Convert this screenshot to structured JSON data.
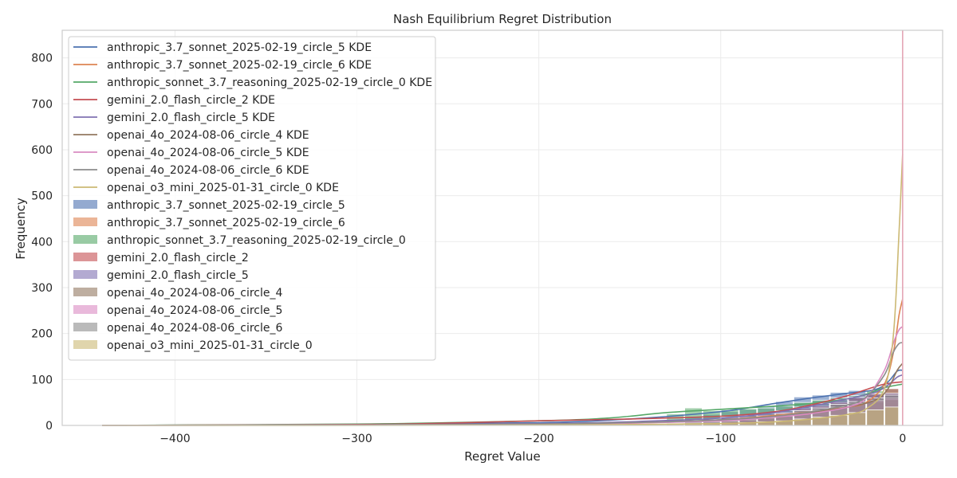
{
  "chart_data": {
    "type": "histogram",
    "title": "Nash Equilibrium Regret Distribution",
    "xlabel": "Regret Value",
    "ylabel": "Frequency",
    "xlim": [
      -462,
      22
    ],
    "ylim": [
      0,
      860
    ],
    "xticks": [
      -400,
      -300,
      -200,
      -100,
      0
    ],
    "xtick_labels": [
      "−400",
      "−300",
      "−200",
      "−100",
      "0"
    ],
    "yticks": [
      0,
      100,
      200,
      300,
      400,
      500,
      600,
      700,
      800
    ],
    "ytick_labels": [
      "0",
      "100",
      "200",
      "300",
      "400",
      "500",
      "600",
      "700",
      "800"
    ],
    "grid": true,
    "legend_position": "upper-left",
    "reference_line_x": 0,
    "reference_line_color": "#e3a7b6",
    "bin_edges": [
      -130,
      -120,
      -110,
      -100,
      -90,
      -80,
      -70,
      -60,
      -50,
      -40,
      -30,
      -20,
      -10,
      -2
    ],
    "series": [
      {
        "name": "anthropic_3.7_sonnet_2025-02-19_circle_5",
        "color": "#4c72b0",
        "counts": [
          10,
          18,
          24,
          30,
          35,
          42,
          52,
          62,
          66,
          72,
          76,
          72,
          70,
          80
        ],
        "kde": [
          [
            -440,
            0
          ],
          [
            -300,
            2
          ],
          [
            -200,
            6
          ],
          [
            -150,
            14
          ],
          [
            -100,
            30
          ],
          [
            -70,
            48
          ],
          [
            -50,
            60
          ],
          [
            -30,
            70
          ],
          [
            -15,
            78
          ],
          [
            -8,
            95
          ],
          [
            -3,
            118
          ],
          [
            0,
            120
          ]
        ]
      },
      {
        "name": "anthropic_3.7_sonnet_2025-02-19_circle_6",
        "color": "#dd8452",
        "counts": [
          2,
          4,
          6,
          8,
          12,
          16,
          20,
          26,
          30,
          36,
          40,
          45,
          50,
          685
        ],
        "kde": [
          [
            -440,
            0
          ],
          [
            -300,
            1
          ],
          [
            -200,
            3
          ],
          [
            -150,
            5
          ],
          [
            -100,
            12
          ],
          [
            -70,
            22
          ],
          [
            -50,
            30
          ],
          [
            -30,
            40
          ],
          [
            -20,
            50
          ],
          [
            -10,
            90
          ],
          [
            -5,
            160
          ],
          [
            -2,
            240
          ],
          [
            0,
            275
          ]
        ]
      },
      {
        "name": "anthropic_sonnet_3.7_reasoning_2025-02-19_circle_0",
        "color": "#55a868",
        "counts": [
          25,
          38,
          32,
          34,
          36,
          38,
          42,
          50,
          55,
          60,
          65,
          75,
          80,
          600
        ],
        "kde": [
          [
            -440,
            0
          ],
          [
            -300,
            3
          ],
          [
            -250,
            6
          ],
          [
            -200,
            10
          ],
          [
            -170,
            14
          ],
          [
            -150,
            20
          ],
          [
            -130,
            28
          ],
          [
            -100,
            35
          ],
          [
            -70,
            42
          ],
          [
            -50,
            48
          ],
          [
            -30,
            58
          ],
          [
            -20,
            68
          ],
          [
            -10,
            82
          ],
          [
            0,
            90
          ]
        ]
      },
      {
        "name": "gemini_2.0_flash_circle_2",
        "color": "#c44e52",
        "counts": [
          8,
          12,
          14,
          16,
          18,
          22,
          28,
          36,
          42,
          50,
          60,
          70,
          80,
          90
        ],
        "kde": [
          [
            -440,
            0
          ],
          [
            -300,
            2
          ],
          [
            -250,
            5
          ],
          [
            -200,
            10
          ],
          [
            -150,
            14
          ],
          [
            -100,
            20
          ],
          [
            -70,
            30
          ],
          [
            -50,
            45
          ],
          [
            -30,
            65
          ],
          [
            -20,
            78
          ],
          [
            -10,
            90
          ],
          [
            0,
            95
          ]
        ]
      },
      {
        "name": "gemini_2.0_flash_circle_5",
        "color": "#8172b3",
        "counts": [
          6,
          10,
          14,
          18,
          22,
          26,
          32,
          40,
          48,
          56,
          62,
          68,
          70,
          100
        ],
        "kde": [
          [
            -440,
            0
          ],
          [
            -300,
            1
          ],
          [
            -200,
            4
          ],
          [
            -150,
            8
          ],
          [
            -100,
            16
          ],
          [
            -70,
            28
          ],
          [
            -50,
            42
          ],
          [
            -30,
            58
          ],
          [
            -15,
            72
          ],
          [
            -8,
            88
          ],
          [
            -3,
            105
          ],
          [
            0,
            110
          ]
        ]
      },
      {
        "name": "openai_4o_2024-08-06_circle_4",
        "color": "#937860",
        "counts": [
          4,
          6,
          8,
          10,
          14,
          18,
          22,
          28,
          34,
          40,
          46,
          52,
          56,
          598
        ],
        "kde": [
          [
            -440,
            0
          ],
          [
            -300,
            1
          ],
          [
            -200,
            3
          ],
          [
            -150,
            6
          ],
          [
            -100,
            12
          ],
          [
            -70,
            20
          ],
          [
            -50,
            28
          ],
          [
            -30,
            40
          ],
          [
            -15,
            55
          ],
          [
            -8,
            80
          ],
          [
            -3,
            120
          ],
          [
            0,
            135
          ]
        ]
      },
      {
        "name": "openai_4o_2024-08-06_circle_5",
        "color": "#da8bc3",
        "counts": [
          3,
          5,
          7,
          9,
          12,
          16,
          20,
          26,
          32,
          40,
          48,
          55,
          60,
          360
        ],
        "kde": [
          [
            -440,
            0
          ],
          [
            -300,
            1
          ],
          [
            -200,
            3
          ],
          [
            -150,
            5
          ],
          [
            -100,
            10
          ],
          [
            -70,
            18
          ],
          [
            -50,
            26
          ],
          [
            -30,
            40
          ],
          [
            -20,
            60
          ],
          [
            -10,
            120
          ],
          [
            -5,
            180
          ],
          [
            -2,
            208
          ],
          [
            0,
            215
          ]
        ]
      },
      {
        "name": "openai_4o_2024-08-06_circle_6",
        "color": "#8c8c8c",
        "counts": [
          5,
          8,
          10,
          12,
          16,
          20,
          26,
          32,
          38,
          46,
          52,
          60,
          66,
          330
        ],
        "kde": [
          [
            -440,
            0
          ],
          [
            -300,
            1
          ],
          [
            -200,
            3
          ],
          [
            -150,
            6
          ],
          [
            -100,
            12
          ],
          [
            -70,
            20
          ],
          [
            -50,
            30
          ],
          [
            -30,
            45
          ],
          [
            -20,
            62
          ],
          [
            -10,
            110
          ],
          [
            -5,
            160
          ],
          [
            -2,
            178
          ],
          [
            0,
            180
          ]
        ]
      },
      {
        "name": "openai_o3_mini_2025-01-31_circle_0",
        "color": "#ccb974",
        "counts": [
          2,
          3,
          4,
          5,
          6,
          8,
          10,
          14,
          18,
          22,
          28,
          34,
          40,
          815
        ],
        "kde": [
          [
            -440,
            0
          ],
          [
            -300,
            0
          ],
          [
            -200,
            1
          ],
          [
            -150,
            2
          ],
          [
            -100,
            4
          ],
          [
            -70,
            8
          ],
          [
            -50,
            14
          ],
          [
            -30,
            24
          ],
          [
            -20,
            36
          ],
          [
            -10,
            80
          ],
          [
            -5,
            200
          ],
          [
            -2,
            420
          ],
          [
            0,
            590
          ]
        ]
      }
    ]
  },
  "legend": {
    "kde_suffix": " KDE"
  }
}
